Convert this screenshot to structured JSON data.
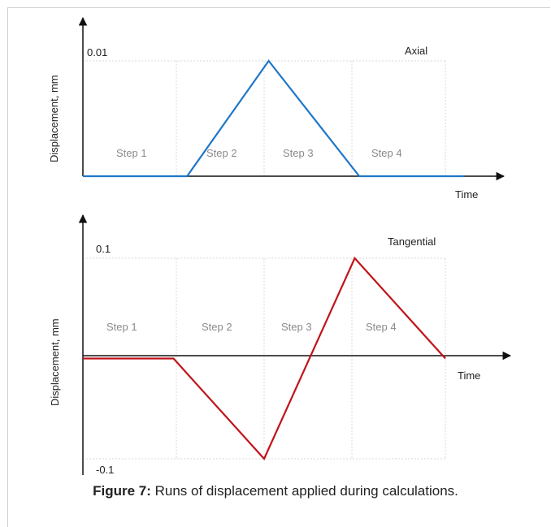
{
  "caption": {
    "label": "Figure 7:",
    "text": " Runs of displacement applied during calculations."
  },
  "chart_data": [
    {
      "type": "line",
      "title": "Axial",
      "xlabel": "Time",
      "ylabel": "Displacement, mm",
      "ylim": [
        0,
        0.01
      ],
      "y_tick_labels": [
        "0.01"
      ],
      "steps": [
        "Step 1",
        "Step 2",
        "Step 3",
        "Step 4"
      ],
      "series": [
        {
          "x": [
            0,
            1.15,
            2.05,
            3.05,
            4.2
          ],
          "y": [
            0,
            0,
            0.01,
            0,
            0
          ]
        }
      ],
      "line_color": "#1f78c8",
      "grid": true
    },
    {
      "type": "line",
      "title": "Tangential",
      "xlabel": "Time",
      "ylabel": "Displacement, mm",
      "ylim": [
        -0.1,
        0.1
      ],
      "y_tick_labels": [
        "0.1",
        "-0.1"
      ],
      "steps": [
        "Step 1",
        "Step 2",
        "Step 3",
        "Step 4"
      ],
      "series": [
        {
          "x": [
            0,
            1,
            2,
            3,
            4
          ],
          "y": [
            0,
            0,
            -0.1,
            0.1,
            0
          ]
        }
      ],
      "line_color": "#c0141a",
      "grid": true
    }
  ]
}
